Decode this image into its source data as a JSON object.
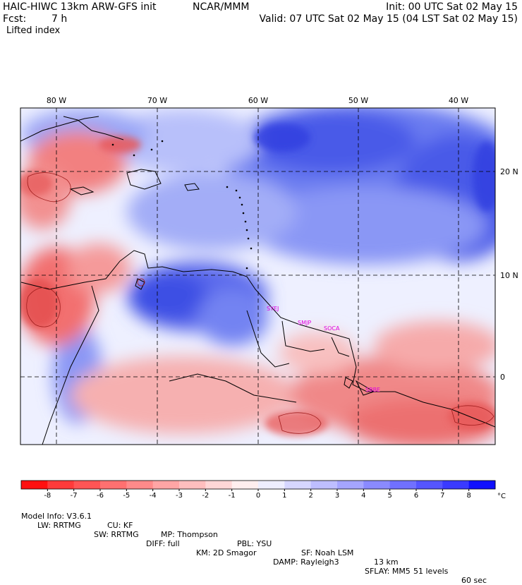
{
  "header": {
    "model": "HAIC-HIWC 13km ARW-GFS init",
    "org": "NCAR/MMM",
    "init": "Init: 00 UTC Sat 02 May 15",
    "fcst_label": "Fcst:",
    "fcst_value": "7 h",
    "valid": "Valid: 07 UTC Sat 02 May 15 (04 LST Sat 02 May 15)",
    "field": "Lifted index"
  },
  "map": {
    "lon_labels": [
      "80 W",
      "70 W",
      "60 W",
      "50 W",
      "40 W"
    ],
    "lat_labels": [
      "20 N",
      "10 N",
      "0"
    ],
    "station_color": "#e000e0",
    "stations": [
      "SYEJ",
      "SMJP",
      "SOCA",
      "SBBE"
    ]
  },
  "colorbar": {
    "unit": "°C",
    "ticks": [
      "-8",
      "-7",
      "-6",
      "-5",
      "-4",
      "-3",
      "-2",
      "-1",
      "0",
      "1",
      "2",
      "3",
      "4",
      "5",
      "6",
      "7",
      "8"
    ],
    "colors": [
      "#ff1010",
      "#ff3a3a",
      "#ff5555",
      "#ff7070",
      "#ff8a8a",
      "#ffa5a5",
      "#ffbebe",
      "#ffd6d6",
      "#ffeeee",
      "#eeeeff",
      "#d6d6ff",
      "#bebeff",
      "#a5a5ff",
      "#8a8aff",
      "#7070ff",
      "#5555ff",
      "#3a3aff",
      "#1010ff"
    ]
  },
  "footer": {
    "line1": [
      {
        "k": "Model Info: V3.6.1"
      },
      {
        "k": "CU: KF"
      },
      {
        "k": "MP: Thompson"
      },
      {
        "k": "PBL: YSU"
      },
      {
        "k": "SF: Noah LSM"
      },
      {
        "k": "13 km"
      },
      {
        "k": "51 levels"
      },
      {
        "k": "60 sec"
      }
    ],
    "line2": [
      {
        "k": "LW: RRTMG"
      },
      {
        "k": "SW: RRTMG"
      },
      {
        "k": "DIFF: full"
      },
      {
        "k": "KM: 2D Smagor"
      },
      {
        "k": "DAMP: Rayleigh3"
      },
      {
        "k": "SFLAY: MM5"
      }
    ]
  }
}
